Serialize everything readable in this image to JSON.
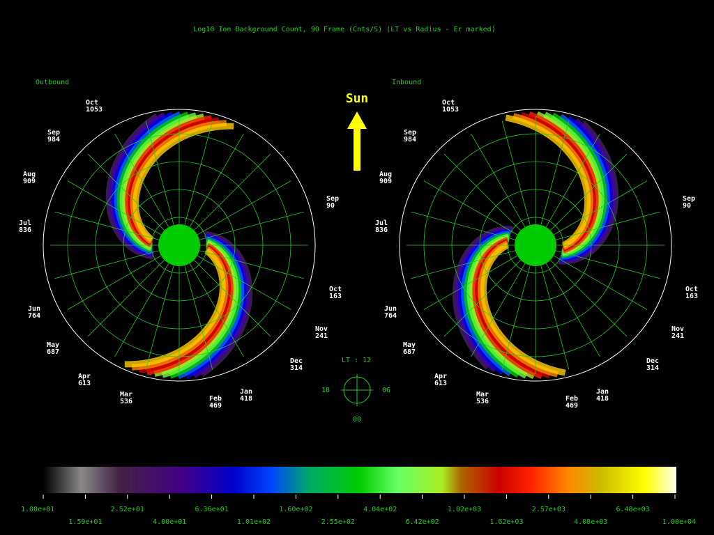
{
  "title": "Log10 Ion Background Count, 90 Frame (Cnts/S)  (LT vs Radius - Er marked)",
  "sun": "Sun",
  "outbound": {
    "title": "Outbound",
    "labels": [
      {
        "month": "Oct",
        "radius": "1053"
      },
      {
        "month": "Sep",
        "radius": "984"
      },
      {
        "month": "Aug",
        "radius": "909"
      },
      {
        "month": "Jul",
        "radius": "836"
      },
      {
        "month": "Jun",
        "radius": "764"
      },
      {
        "month": "May",
        "radius": "687"
      },
      {
        "month": "Apr",
        "radius": "613"
      },
      {
        "month": "Mar",
        "radius": "536"
      },
      {
        "month": "Feb",
        "radius": "469"
      },
      {
        "month": "Jan",
        "radius": "418"
      },
      {
        "month": "Dec",
        "radius": "314"
      },
      {
        "month": "Nov",
        "radius": "241"
      },
      {
        "month": "Oct",
        "radius": "163"
      },
      {
        "month": "Sep",
        "radius": "90"
      }
    ]
  },
  "inbound": {
    "title": "Inbound",
    "labels": [
      {
        "month": "Oct",
        "radius": "1053"
      },
      {
        "month": "Sep",
        "radius": "984"
      },
      {
        "month": "Aug",
        "radius": "909"
      },
      {
        "month": "Jul",
        "radius": "836"
      },
      {
        "month": "Jun",
        "radius": "764"
      },
      {
        "month": "May",
        "radius": "687"
      },
      {
        "month": "Apr",
        "radius": "613"
      },
      {
        "month": "Mar",
        "radius": "536"
      },
      {
        "month": "Feb",
        "radius": "469"
      },
      {
        "month": "Jan",
        "radius": "418"
      },
      {
        "month": "Dec",
        "radius": "314"
      },
      {
        "month": "Nov",
        "radius": "241"
      },
      {
        "month": "Oct",
        "radius": "163"
      },
      {
        "month": "Sep",
        "radius": "90"
      }
    ]
  },
  "compass": {
    "top": "LT :  12",
    "left": "18",
    "right": "06",
    "bottom": "00"
  },
  "colorbar": {
    "labels": [
      "1.00e+01",
      "1.59e+01",
      "2.52e+01",
      "4.00e+01",
      "6.36e+01",
      "1.01e+02",
      "1.60e+02",
      "2.55e+02",
      "4.04e+02",
      "6.42e+02",
      "1.02e+03",
      "1.62e+03",
      "2.57e+03",
      "4.08e+03",
      "6.48e+03",
      "1.00e+04"
    ]
  }
}
